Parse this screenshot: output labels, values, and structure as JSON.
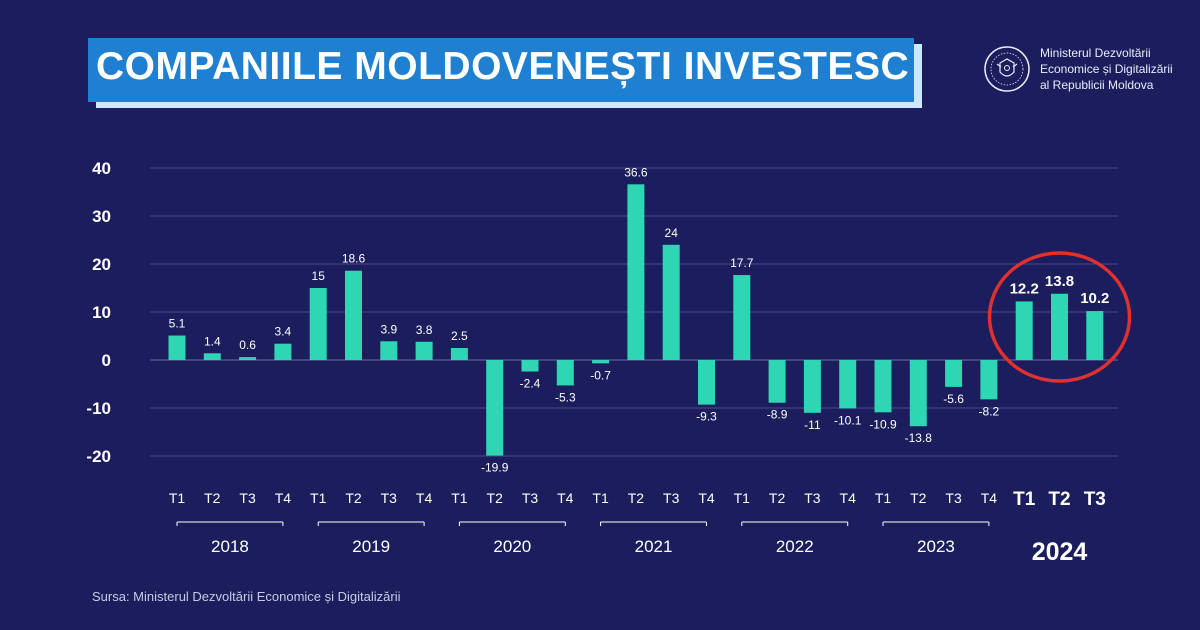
{
  "header": {
    "title": "COMPANIILE MOLDOVENEȘTI INVESTESC",
    "ministry_line1": "Ministerul Dezvoltării",
    "ministry_line2": "Economice și Digitalizării",
    "ministry_line3": "al Republicii Moldova",
    "emblem_icon": "moldova-coat-of-arms-icon"
  },
  "footer": {
    "source": "Sursa: Ministerul Dezvoltării Economice și Digitalizării"
  },
  "colors": {
    "background": "#1b1d5c",
    "bar": "#2fd6b4",
    "title_bg": "#1f7fd0",
    "highlight_circle": "#e0302f",
    "grid": "#5a5e95"
  },
  "chart_data": {
    "type": "bar",
    "title": "COMPANIILE MOLDOVENEȘTI INVESTESC",
    "xlabel": "",
    "ylabel": "",
    "ylim": [
      -20,
      40
    ],
    "yticks": [
      40,
      30,
      20,
      10,
      0,
      -10,
      -20
    ],
    "grid": true,
    "categories": [
      "T1",
      "T2",
      "T3",
      "T4",
      "T1",
      "T2",
      "T3",
      "T4",
      "T1",
      "T2",
      "T3",
      "T4",
      "T1",
      "T2",
      "T3",
      "T4",
      "T1",
      "T2",
      "T3",
      "T4",
      "T1",
      "T2",
      "T3",
      "T4",
      "T1",
      "T2",
      "T3"
    ],
    "years": [
      {
        "label": "2018",
        "quarters": 4
      },
      {
        "label": "2019",
        "quarters": 4
      },
      {
        "label": "2020",
        "quarters": 4
      },
      {
        "label": "2021",
        "quarters": 4
      },
      {
        "label": "2022",
        "quarters": 4
      },
      {
        "label": "2023",
        "quarters": 4
      },
      {
        "label": "2024",
        "quarters": 3,
        "highlight": true
      }
    ],
    "values": [
      5.1,
      1.4,
      0.6,
      3.4,
      15,
      18.6,
      3.9,
      3.8,
      2.5,
      -19.9,
      -2.4,
      -5.3,
      -0.7,
      36.6,
      24,
      -9.3,
      17.7,
      -8.9,
      -11,
      -10.1,
      -10.9,
      -13.8,
      -5.6,
      -8.2,
      12.2,
      13.8,
      10.2
    ],
    "data_labels": [
      "5.1",
      "1.4",
      "0.6",
      "3.4",
      "15",
      "18.6",
      "3.9",
      "3.8",
      "2.5",
      "-19.9",
      "-2.4",
      "-5.3",
      "-0.7",
      "36.6",
      "24",
      "-9.3",
      "17.7",
      "-8.9",
      "-11",
      "-10.1",
      "-10.9",
      "-13.8",
      "-5.6",
      "-8.2",
      "12.2",
      "13.8",
      "10.2"
    ],
    "highlighted_group": "2024"
  }
}
